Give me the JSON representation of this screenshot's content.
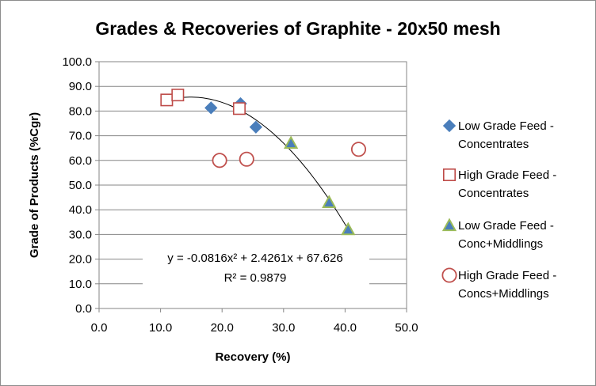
{
  "chart_data": {
    "type": "scatter",
    "title": "Grades & Recoveries of Graphite - 20x50 mesh",
    "xlabel": "Recovery (%)",
    "ylabel": "Grade of Products (%Cgr)",
    "xlim": [
      0,
      50
    ],
    "ylim": [
      0,
      100
    ],
    "x_ticks": [
      "0.0",
      "10.0",
      "20.0",
      "30.0",
      "40.0",
      "50.0"
    ],
    "y_ticks": [
      "0.0",
      "10.0",
      "20.0",
      "30.0",
      "40.0",
      "50.0",
      "60.0",
      "70.0",
      "80.0",
      "90.0",
      "100.0"
    ],
    "grid": "horizontal major gridlines",
    "legend_position": "right",
    "series": [
      {
        "name_lines": [
          "Low Grade Feed -",
          "Concentrates"
        ],
        "marker": "diamond",
        "color": "#4a7ebb",
        "points": [
          [
            18.2,
            81.3
          ],
          [
            23.0,
            83.0
          ],
          [
            25.5,
            73.5
          ]
        ]
      },
      {
        "name_lines": [
          "High Grade Feed -",
          "Concentrates"
        ],
        "marker": "square-open",
        "color": "#be4b48",
        "points": [
          [
            11.0,
            84.5
          ],
          [
            12.8,
            86.5
          ],
          [
            22.8,
            81.0
          ]
        ]
      },
      {
        "name_lines": [
          "Low Grade Feed -",
          "Conc+Middlings"
        ],
        "marker": "triangle",
        "color": "#9bbb59",
        "fill": "#4a7ebb",
        "points": [
          [
            31.2,
            67.0
          ],
          [
            37.4,
            43.0
          ],
          [
            40.5,
            32.0
          ]
        ]
      },
      {
        "name_lines": [
          "High Grade Feed -",
          "Concs+Middlings"
        ],
        "marker": "circle-open",
        "color": "#c0504d",
        "points": [
          [
            19.6,
            60.0
          ],
          [
            24.0,
            60.5
          ],
          [
            42.2,
            64.5
          ]
        ]
      }
    ],
    "trendline": {
      "type": "polynomial",
      "coefficients": [
        -0.0816,
        2.4261,
        67.626
      ],
      "x_range": [
        11.0,
        40.5
      ],
      "color": "#000000"
    },
    "annotations": {
      "equation": "y = -0.0816x² + 2.4261x + 67.626",
      "r_squared": "R² = 0.9879"
    }
  }
}
